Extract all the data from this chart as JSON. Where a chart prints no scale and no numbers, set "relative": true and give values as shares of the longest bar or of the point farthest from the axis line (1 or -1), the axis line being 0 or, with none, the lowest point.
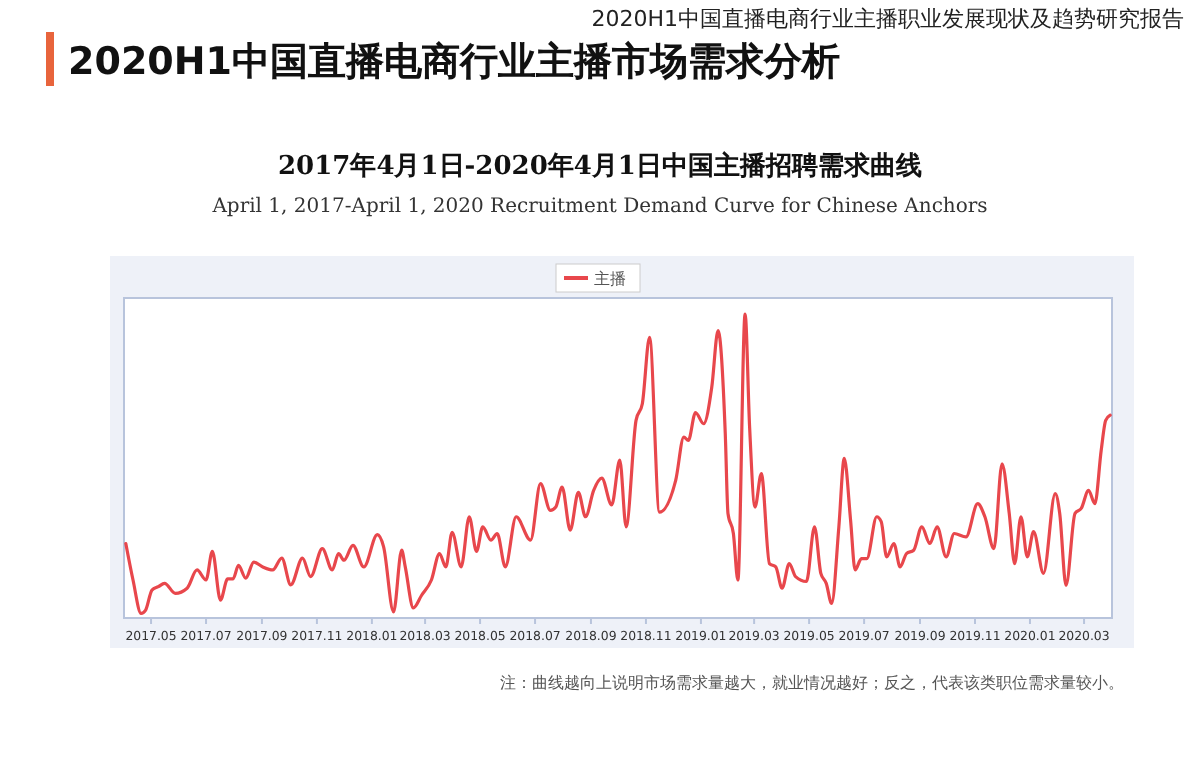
{
  "chart_data": {
    "type": "line",
    "title": "2020H1中国直播电商行业主播市场需求分析",
    "subtitle": "2017年4月1日-2020年4月1日中国主播招聘需求曲线",
    "annotations": [
      "2020H1中国直播电商行业主播职业发展现状及趋势研究报告",
      "April 1, 2017-April 1, 2020 Recruitment Demand Curve for Chinese Anchors",
      "注：曲线越向上说明市场需求量越大，就业情况越好；反之，代表该类职位需求量较小。"
    ],
    "relative": true,
    "legend": "top",
    "marker": "none",
    "line_style": "solid",
    "tick_labels": "x",
    "xlim": [
      "2017-04-01",
      "2020-04-01"
    ],
    "xticks": [
      {
        "value": "2017-05-01",
        "label": "2017.05"
      },
      {
        "value": "2017-07-01",
        "label": "2017.07"
      },
      {
        "value": "2017-09-01",
        "label": "2017.09"
      },
      {
        "value": "2017-11-01",
        "label": "2017.11"
      },
      {
        "value": "2018-01-01",
        "label": "2018.01"
      },
      {
        "value": "2018-03-01",
        "label": "2018.03"
      },
      {
        "value": "2018-05-01",
        "label": "2018.05"
      },
      {
        "value": "2018-07-01",
        "label": "2018.07"
      },
      {
        "value": "2018-09-01",
        "label": "2018.09"
      },
      {
        "value": "2018-11-01",
        "label": "2018.11"
      },
      {
        "value": "2019-01-01",
        "label": "2019.01"
      },
      {
        "value": "2019-03-01",
        "label": "2019.03"
      },
      {
        "value": "2019-05-01",
        "label": "2019.05"
      },
      {
        "value": "2019-07-01",
        "label": "2019.07"
      },
      {
        "value": "2019-09-01",
        "label": "2019.09"
      },
      {
        "value": "2019-11-01",
        "label": "2019.11"
      },
      {
        "value": "2020-01-01",
        "label": "2020.01"
      },
      {
        "value": "2020-03-01",
        "label": "2020.03"
      }
    ],
    "x": [
      "2017-04-03",
      "2017-04-11",
      "2017-04-20",
      "2017-04-25",
      "2017-05-02",
      "2017-05-09",
      "2017-05-16",
      "2017-05-28",
      "2017-06-10",
      "2017-06-21",
      "2017-07-01",
      "2017-07-08",
      "2017-07-17",
      "2017-07-25",
      "2017-07-31",
      "2017-08-06",
      "2017-08-14",
      "2017-08-23",
      "2017-09-02",
      "2017-09-13",
      "2017-09-23",
      "2017-10-03",
      "2017-10-16",
      "2017-10-25",
      "2017-11-07",
      "2017-11-18",
      "2017-11-25",
      "2017-12-01",
      "2017-12-11",
      "2017-12-23",
      "2018-01-07",
      "2018-01-14",
      "2018-01-25",
      "2018-02-03",
      "2018-02-07",
      "2018-02-16",
      "2018-02-25",
      "2018-03-08",
      "2018-03-17",
      "2018-03-24",
      "2018-03-31",
      "2018-04-10",
      "2018-04-19",
      "2018-04-27",
      "2018-05-04",
      "2018-05-13",
      "2018-05-20",
      "2018-05-29",
      "2018-06-10",
      "2018-06-26",
      "2018-07-07",
      "2018-07-18",
      "2018-07-24",
      "2018-07-31",
      "2018-08-09",
      "2018-08-18",
      "2018-08-26",
      "2018-09-04",
      "2018-09-13",
      "2018-09-24",
      "2018-10-03",
      "2018-10-10",
      "2018-10-21",
      "2018-10-28",
      "2018-11-05",
      "2018-11-16",
      "2018-12-04",
      "2018-12-13",
      "2018-12-18",
      "2018-12-26",
      "2019-01-04",
      "2019-01-13",
      "2019-01-20",
      "2019-01-28",
      "2019-01-31",
      "2019-02-06",
      "2019-02-11",
      "2019-02-19",
      "2019-02-24",
      "2019-03-02",
      "2019-03-09",
      "2019-03-18",
      "2019-03-25",
      "2019-04-01",
      "2019-04-09",
      "2019-04-16",
      "2019-04-28",
      "2019-05-07",
      "2019-05-14",
      "2019-05-20",
      "2019-05-26",
      "2019-06-03",
      "2019-06-09",
      "2019-06-16",
      "2019-06-21",
      "2019-06-28",
      "2019-07-04",
      "2019-07-15",
      "2019-07-20",
      "2019-07-26",
      "2019-08-03",
      "2019-08-10",
      "2019-08-17",
      "2019-08-25",
      "2019-09-03",
      "2019-09-12",
      "2019-09-20",
      "2019-09-30",
      "2019-10-09",
      "2019-10-22",
      "2019-11-04",
      "2019-11-12",
      "2019-11-22",
      "2019-12-01",
      "2019-12-09",
      "2019-12-15",
      "2019-12-22",
      "2019-12-29",
      "2020-01-05",
      "2020-01-16",
      "2020-01-29",
      "2020-02-03",
      "2020-02-10",
      "2020-02-20",
      "2020-02-27",
      "2020-03-06",
      "2020-03-13",
      "2020-03-20",
      "2020-03-25",
      "2020-03-30"
    ],
    "series": [
      {
        "name": "主播",
        "color": "#e8474c",
        "values": [
          0.245,
          0.125,
          0.015,
          0.026,
          0.092,
          0.103,
          0.114,
          0.081,
          0.098,
          0.158,
          0.125,
          0.219,
          0.059,
          0.129,
          0.129,
          0.173,
          0.131,
          0.184,
          0.168,
          0.158,
          0.197,
          0.109,
          0.197,
          0.136,
          0.228,
          0.158,
          0.212,
          0.19,
          0.239,
          0.168,
          0.274,
          0.234,
          0.02,
          0.223,
          0.168,
          0.033,
          0.074,
          0.125,
          0.212,
          0.168,
          0.282,
          0.168,
          0.333,
          0.219,
          0.3,
          0.256,
          0.278,
          0.168,
          0.333,
          0.256,
          0.442,
          0.354,
          0.365,
          0.431,
          0.289,
          0.413,
          0.333,
          0.42,
          0.46,
          0.372,
          0.519,
          0.3,
          0.65,
          0.705,
          0.923,
          0.348,
          0.453,
          0.595,
          0.584,
          0.676,
          0.639,
          0.759,
          0.945,
          0.606,
          0.344,
          0.278,
          0.125,
          1.0,
          0.628,
          0.365,
          0.475,
          0.179,
          0.168,
          0.098,
          0.179,
          0.136,
          0.12,
          0.3,
          0.147,
          0.114,
          0.048,
          0.3,
          0.525,
          0.322,
          0.158,
          0.195,
          0.195,
          0.333,
          0.317,
          0.201,
          0.245,
          0.168,
          0.212,
          0.223,
          0.3,
          0.245,
          0.3,
          0.201,
          0.278,
          0.267,
          0.376,
          0.333,
          0.228,
          0.507,
          0.344,
          0.179,
          0.333,
          0.201,
          0.284,
          0.147,
          0.409,
          0.344,
          0.107,
          0.344,
          0.361,
          0.42,
          0.376,
          0.551,
          0.65,
          0.667
        ]
      }
    ]
  }
}
